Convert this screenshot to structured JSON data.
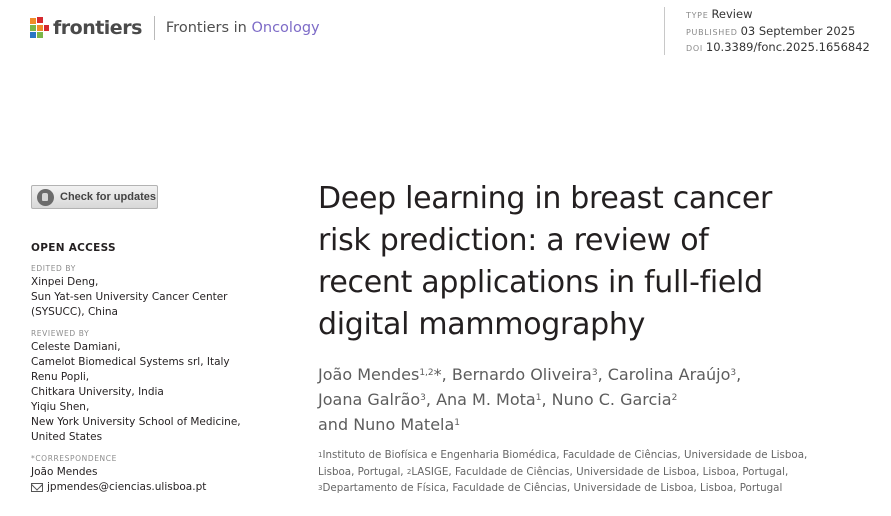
{
  "header": {
    "brand": "frontiers",
    "journal_prefix": "Frontiers in",
    "journal_accent": "Oncology",
    "brand_colors": {
      "accent": "#7d6bc7",
      "logo_orange": "#f08c28",
      "logo_red": "#d5292f",
      "logo_green": "#7ab648",
      "logo_blue": "#2a76c6"
    },
    "meta": {
      "type_label": "TYPE",
      "type_value": "Review",
      "published_label": "PUBLISHED",
      "published_value": "03 September 2025",
      "doi_label": "DOI",
      "doi_value": "10.3389/fonc.2025.1656842"
    }
  },
  "check_updates": {
    "label": "Check for updates",
    "icon": "crossmark-icon"
  },
  "sidebar": {
    "open_access": "OPEN ACCESS",
    "edited_by": {
      "label": "EDITED BY",
      "lines": [
        "Xinpei Deng,",
        "Sun Yat-sen University Cancer Center",
        "(SYSUCC), China"
      ]
    },
    "reviewed_by": {
      "label": "REVIEWED BY",
      "lines": [
        "Celeste Damiani,",
        "Camelot Biomedical Systems srl, Italy",
        "Renu Popli,",
        "Chitkara University, India",
        "Yiqiu Shen,",
        "New York University School of Medicine,",
        "United States"
      ]
    },
    "correspondence": {
      "label": "*CORRESPONDENCE",
      "name": "João Mendes",
      "email": "jpmendes@ciencias.ulisboa.pt",
      "email_icon": "mail-icon"
    }
  },
  "article": {
    "title_lines": [
      "Deep learning in breast cancer",
      "risk prediction: a review of",
      "recent applications in full-field",
      "digital mammography"
    ],
    "authors": [
      {
        "name": "João Mendes",
        "sup": "1,2",
        "mark": "*",
        "sep": ", "
      },
      {
        "name": "Bernardo Oliveira",
        "sup": "3",
        "mark": "",
        "sep": ", "
      },
      {
        "name": "Carolina Araújo",
        "sup": "3",
        "mark": "",
        "sep": ","
      },
      {
        "name": "Joana Galrão",
        "sup": "3",
        "mark": "",
        "sep": ", "
      },
      {
        "name": "Ana M. Mota",
        "sup": "1",
        "mark": "",
        "sep": ", "
      },
      {
        "name": "Nuno C. Garcia",
        "sup": "2",
        "mark": "",
        "sep": ""
      },
      {
        "name": "Nuno Matela",
        "sup": "1",
        "mark": "",
        "sep": "",
        "prefix": "and "
      }
    ],
    "affiliations": [
      {
        "sup": "1",
        "text": "Instituto de Biofísica e Engenharia Biomédica, Faculdade de Ciências, Universidade de Lisboa,"
      },
      {
        "text": "Lisboa, Portugal, ",
        "sup2": "2",
        "text2": "LASIGE, Faculdade de Ciências, Universidade de Lisboa, Lisboa, Portugal,"
      },
      {
        "sup": "3",
        "text": "Departamento de Física, Faculdade de Ciências, Universidade de Lisboa, Lisboa, Portugal"
      }
    ]
  }
}
